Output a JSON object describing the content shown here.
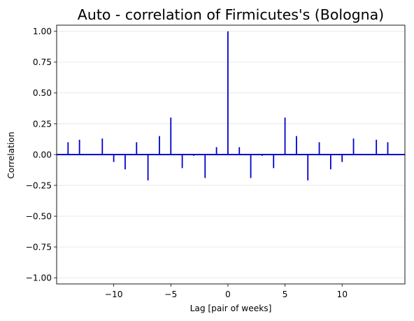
{
  "chart_data": {
    "type": "bar",
    "title": "Auto - correlation of Firmicutes's (Bologna)",
    "xlabel": "Lag [pair of weeks]",
    "ylabel": "Correlation",
    "xlim": [
      -15,
      15.5
    ],
    "ylim": [
      -1.05,
      1.05
    ],
    "xticks": [
      -10,
      -5,
      0,
      5,
      10
    ],
    "yticks": [
      1.0,
      0.75,
      0.5,
      0.25,
      0.0,
      -0.25,
      -0.5,
      -0.75,
      -1.0
    ],
    "ytick_labels": [
      "1.00",
      "0.75",
      "0.50",
      "0.25",
      "0.00",
      "−0.25",
      "−0.50",
      "−0.75",
      "−1.00"
    ],
    "xtick_labels": [
      "−10",
      "−5",
      "0",
      "5",
      "10"
    ],
    "grid": "horizontal",
    "baseline": 0,
    "colors": {
      "lines": "#0000cc",
      "baseline": "#0000cc"
    },
    "x": [
      -14,
      -13,
      -12,
      -11,
      -10,
      -9,
      -8,
      -7,
      -6,
      -5,
      -4,
      -3,
      -2,
      -1,
      0,
      1,
      2,
      3,
      4,
      5,
      6,
      7,
      8,
      9,
      10,
      11,
      12,
      13,
      14
    ],
    "values": [
      0.1,
      0.12,
      0.0,
      0.13,
      -0.06,
      -0.12,
      0.1,
      -0.21,
      0.15,
      0.3,
      -0.11,
      -0.01,
      -0.19,
      0.06,
      1.0,
      0.06,
      -0.19,
      -0.01,
      -0.11,
      0.3,
      0.15,
      -0.21,
      0.1,
      -0.12,
      -0.06,
      0.13,
      0.0,
      0.12,
      0.1
    ]
  }
}
